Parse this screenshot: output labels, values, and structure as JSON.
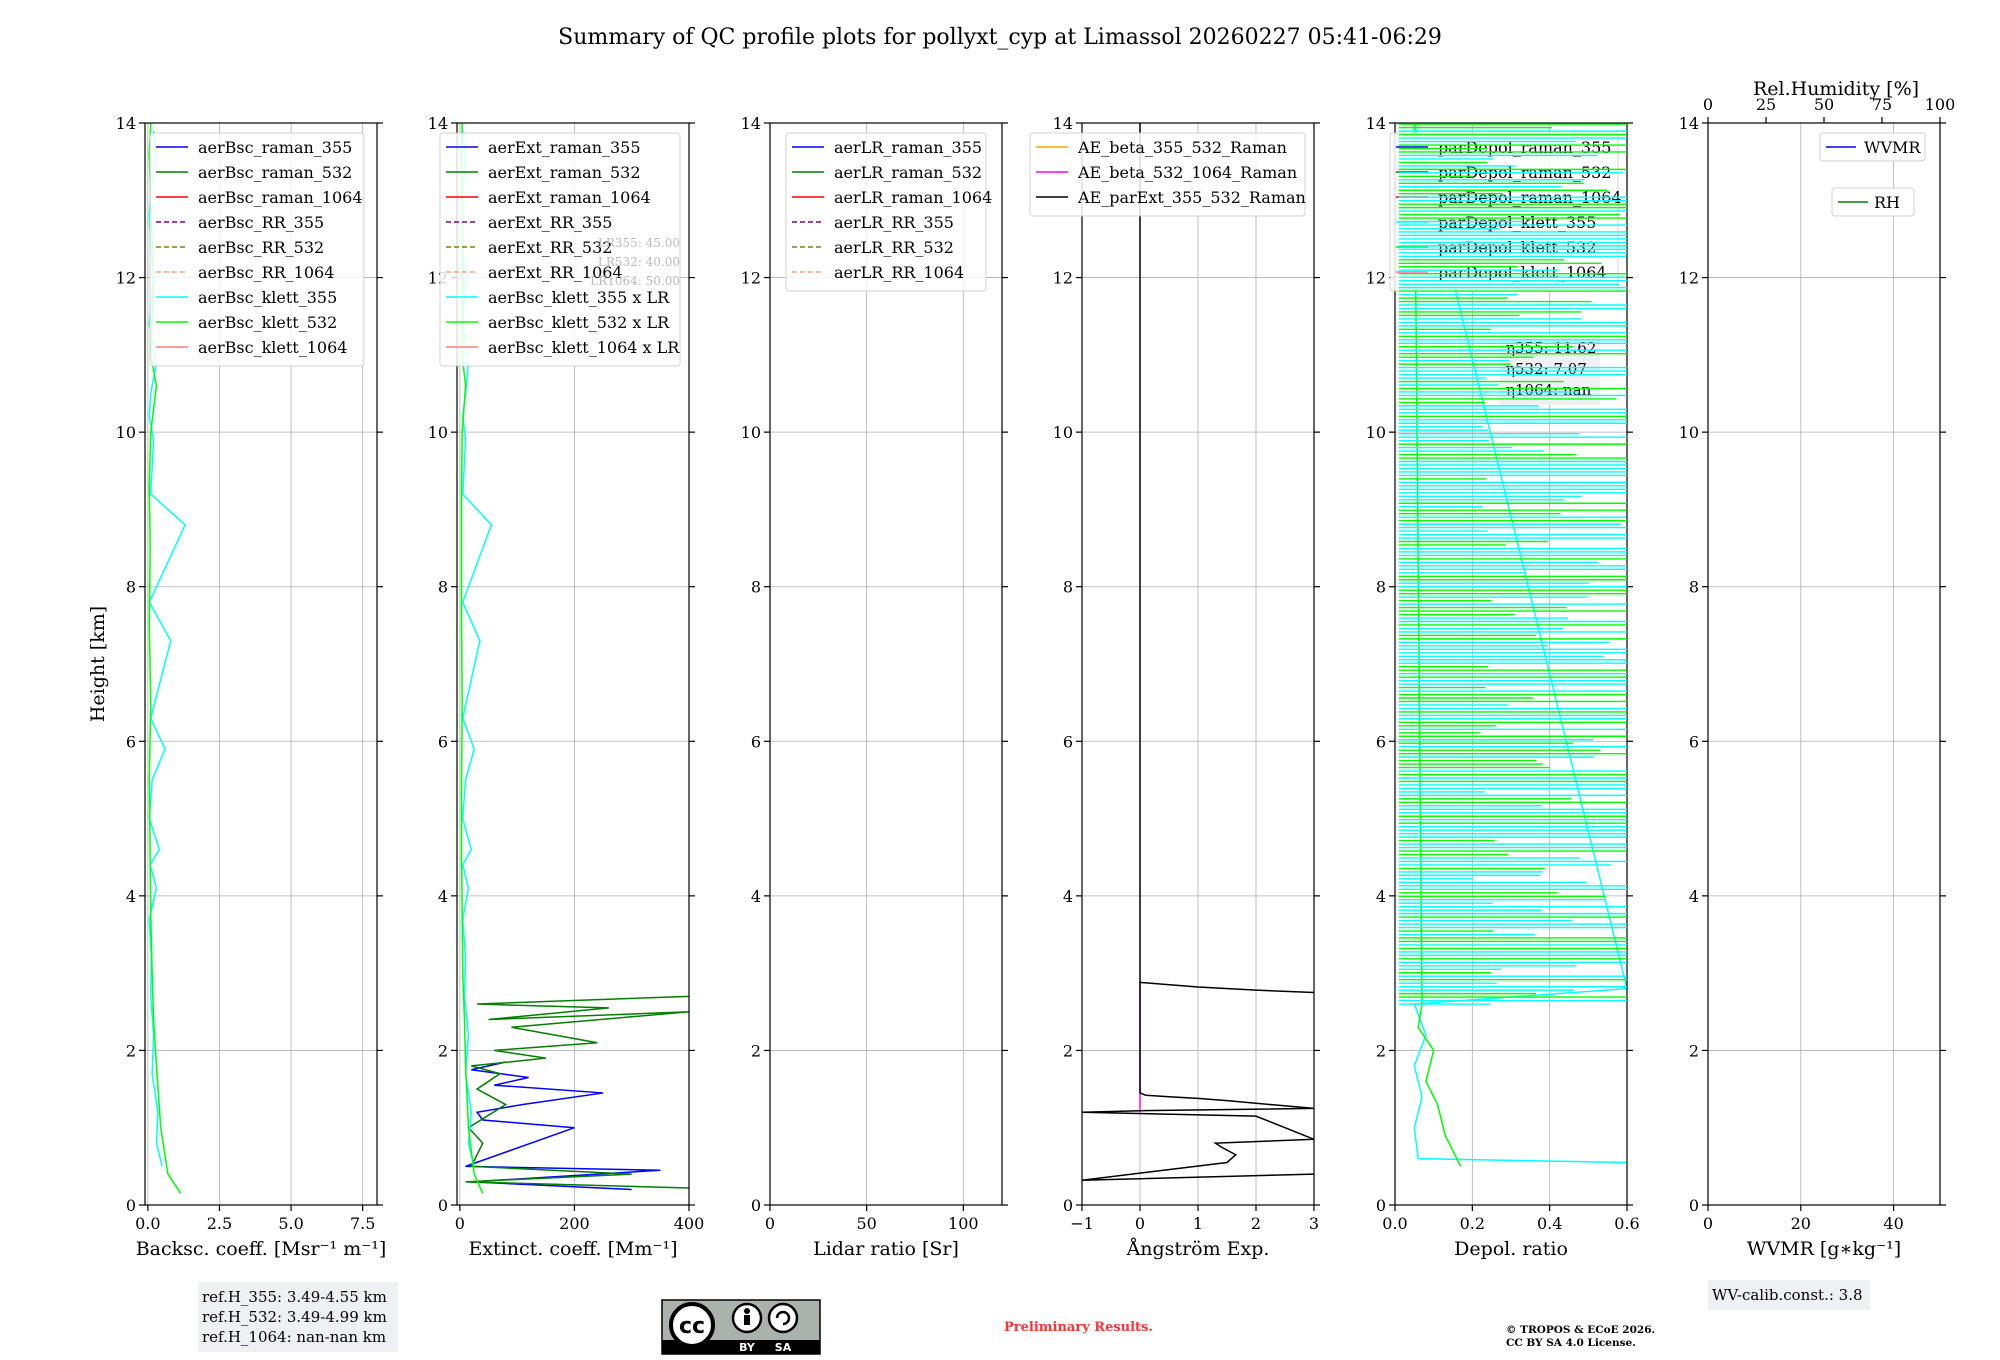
{
  "title": "Summary of QC profile plots for pollyxt_cyp at Limassol 20260227 05:41-06:29",
  "chart_data": [
    {
      "type": "line",
      "name": "backscatter",
      "xlabel": "Backsc. coeff. [Msr⁻¹ m⁻¹]",
      "ylabel": "Height [km]",
      "xlim": [
        -0.1,
        8.0
      ],
      "ylim": [
        0,
        14
      ],
      "xticks": [
        0,
        2.5,
        5.0,
        7.5
      ],
      "xticklabels": [
        "0.0",
        "2.5",
        "5.0",
        "7.5"
      ],
      "yticks": [
        0,
        2,
        4,
        6,
        8,
        10,
        12,
        14
      ],
      "legend": [
        "aerBsc_raman_355",
        "aerBsc_raman_532",
        "aerBsc_raman_1064",
        "aerBsc_RR_355",
        "aerBsc_RR_532",
        "aerBsc_RR_1064",
        "aerBsc_klett_355",
        "aerBsc_klett_532",
        "aerBsc_klett_1064"
      ],
      "legend_colors": [
        "#0000ff",
        "#008000",
        "#ff0000",
        "#800080",
        "#808000",
        "#ffa07a",
        "#00ffff",
        "#00ff00",
        "#fa8072"
      ],
      "legend_dashed": [
        false,
        false,
        false,
        true,
        true,
        true,
        false,
        false,
        false
      ],
      "series": [
        {
          "name": "aerBsc_klett_355",
          "color": "#00ffff",
          "x": [
            0.5,
            0.3,
            0.35,
            0.15,
            0.2,
            0.1,
            0.12,
            0.05,
            0.3,
            0.08,
            0.4,
            0.05,
            0.15,
            0.6,
            0.1,
            0.8,
            0.05,
            1.3,
            0.1,
            0.2,
            0.05,
            0.1,
            0.3,
            0.05,
            0.2,
            0.1,
            0.05,
            0.1,
            0.3,
            0.2
          ],
          "y": [
            0.5,
            0.8,
            1.2,
            1.7,
            2.2,
            2.7,
            3.2,
            3.7,
            4.1,
            4.4,
            4.6,
            5.0,
            5.5,
            5.9,
            6.3,
            7.3,
            7.8,
            8.8,
            9.2,
            9.9,
            10.2,
            10.5,
            10.9,
            11.4,
            12.0,
            12.4,
            12.8,
            13.1,
            13.5,
            13.9
          ]
        },
        {
          "name": "aerBsc_klett_532",
          "color": "#00ff00",
          "x": [
            1.15,
            0.7,
            0.45,
            0.3,
            0.2,
            0.15,
            0.1,
            0.08,
            0.05,
            0.1,
            0.05,
            0.08,
            0.05,
            0.1,
            0.3,
            0.1,
            0.2,
            0.1,
            0.05,
            0.1
          ],
          "y": [
            0.15,
            0.4,
            1.0,
            1.8,
            2.4,
            3.0,
            3.8,
            4.5,
            5.5,
            6.5,
            7.5,
            8.5,
            9.3,
            10.0,
            10.6,
            11.0,
            12.0,
            13.0,
            13.6,
            14.0
          ]
        }
      ],
      "annotation": [
        "ref.H_355: 3.49-4.55 km",
        "ref.H_532: 3.49-4.99 km",
        "ref.H_1064: nan-nan km"
      ]
    },
    {
      "type": "line",
      "name": "extinction",
      "xlabel": "Extinct. coeff. [Mm⁻¹]",
      "xlim": [
        -5,
        400
      ],
      "ylim": [
        0,
        14
      ],
      "xticks": [
        0,
        200,
        400
      ],
      "xticklabels": [
        "0",
        "200",
        "400"
      ],
      "yticks": [
        0,
        2,
        4,
        6,
        8,
        10,
        12,
        14
      ],
      "legend": [
        "aerExt_raman_355",
        "aerExt_raman_532",
        "aerExt_raman_1064",
        "aerExt_RR_355",
        "aerExt_RR_532",
        "aerExt_RR_1064",
        "aerBsc_klett_355 x LR",
        "aerBsc_klett_532 x LR",
        "aerBsc_klett_1064 x LR"
      ],
      "legend_colors": [
        "#0000ff",
        "#008000",
        "#ff0000",
        "#800080",
        "#808000",
        "#ffa07a",
        "#00ffff",
        "#00ff00",
        "#fa8072"
      ],
      "legend_dashed": [
        false,
        false,
        false,
        true,
        true,
        true,
        false,
        false,
        false
      ],
      "lr_labels": [
        "LR355: 45.00",
        "LR532: 40.00",
        "LR1064: 50.00"
      ],
      "series": [
        {
          "name": "aerExt_raman_355",
          "color": "#0000ff",
          "x": [
            300,
            20,
            350,
            10,
            200,
            40,
            30,
            110,
            250,
            60,
            120,
            20,
            80
          ],
          "y": [
            0.2,
            0.3,
            0.45,
            0.5,
            1.0,
            1.1,
            1.2,
            1.3,
            1.45,
            1.55,
            1.65,
            1.75,
            1.85
          ]
        },
        {
          "name": "aerExt_raman_532",
          "color": "#008000",
          "x": [
            400,
            10,
            300,
            20,
            40,
            15,
            80,
            30,
            70,
            20,
            150,
            60,
            240,
            90,
            400,
            50,
            260,
            30,
            400
          ],
          "y": [
            0.22,
            0.3,
            0.4,
            0.5,
            0.8,
            1.0,
            1.3,
            1.5,
            1.7,
            1.8,
            1.9,
            2.0,
            2.1,
            2.3,
            2.5,
            2.4,
            2.55,
            2.6,
            2.7
          ]
        },
        {
          "name": "aerBsc_klett_355 x LR",
          "color": "#00ffff",
          "x": [
            25,
            15,
            20,
            10,
            15,
            8,
            10,
            5,
            15,
            5,
            20,
            5,
            10,
            25,
            5,
            35,
            5,
            55,
            5,
            10,
            5,
            10,
            15,
            5,
            10,
            5,
            5,
            5,
            10,
            5
          ],
          "y": [
            0.5,
            0.8,
            1.2,
            1.7,
            2.2,
            2.7,
            3.2,
            3.7,
            4.1,
            4.4,
            4.6,
            5.0,
            5.5,
            5.9,
            6.3,
            7.3,
            7.8,
            8.8,
            9.2,
            9.9,
            10.2,
            10.5,
            10.9,
            11.4,
            12.0,
            12.4,
            12.8,
            13.1,
            13.5,
            13.9
          ]
        },
        {
          "name": "aerBsc_klett_532 x LR",
          "color": "#00ff00",
          "x": [
            40,
            25,
            15,
            10,
            8,
            5,
            4,
            3,
            3,
            4,
            3,
            3,
            3,
            4,
            10,
            4,
            5,
            4,
            3,
            4
          ],
          "y": [
            0.15,
            0.4,
            1.0,
            1.8,
            2.4,
            3.0,
            3.8,
            4.5,
            5.5,
            6.5,
            7.5,
            8.5,
            9.3,
            10.0,
            10.6,
            11.0,
            12.0,
            13.0,
            13.6,
            14.0
          ]
        }
      ]
    },
    {
      "type": "line",
      "name": "lidar_ratio",
      "xlabel": "Lidar ratio [Sr]",
      "xlim": [
        0,
        120
      ],
      "ylim": [
        0,
        14
      ],
      "xticks": [
        0,
        50,
        100
      ],
      "xticklabels": [
        "0",
        "50",
        "100"
      ],
      "yticks": [
        0,
        2,
        4,
        6,
        8,
        10,
        12,
        14
      ],
      "legend": [
        "aerLR_raman_355",
        "aerLR_raman_532",
        "aerLR_raman_1064",
        "aerLR_RR_355",
        "aerLR_RR_532",
        "aerLR_RR_1064"
      ],
      "legend_colors": [
        "#0000ff",
        "#008000",
        "#ff0000",
        "#800080",
        "#808000",
        "#ffa07a"
      ],
      "legend_dashed": [
        false,
        false,
        false,
        true,
        true,
        true
      ],
      "series": []
    },
    {
      "type": "line",
      "name": "angstrom",
      "xlabel": "Ångström Exp.",
      "xlim": [
        -1,
        3
      ],
      "ylim": [
        0,
        14
      ],
      "xticks": [
        -1,
        0,
        1,
        2,
        3
      ],
      "xticklabels": [
        "−1",
        "0",
        "1",
        "2",
        "3"
      ],
      "yticks": [
        0,
        2,
        4,
        6,
        8,
        10,
        12,
        14
      ],
      "legend": [
        "AE_beta_355_532_Raman",
        "AE_beta_532_1064_Raman",
        "AE_parExt_355_532_Raman"
      ],
      "legend_colors": [
        "#ffa500",
        "#ff00ff",
        "#000000"
      ],
      "legend_dashed": [
        false,
        false,
        false
      ],
      "series": [
        {
          "name": "AE_beta_532_1064_Raman",
          "color": "#ff00ff",
          "x": [
            0,
            0
          ],
          "y": [
            1.2,
            2.9
          ]
        },
        {
          "name": "AE_parExt_355_532_Raman",
          "color": "#000000",
          "x": [
            3.0,
            -1.0,
            1.5,
            1.65,
            1.4,
            1.3,
            3.0,
            2.0,
            -1.0,
            0.0,
            3.0,
            1.5,
            1.0,
            0.5,
            0.1,
            0.0,
            0.0,
            0.0
          ],
          "y": [
            0.4,
            0.32,
            0.55,
            0.65,
            0.75,
            0.8,
            0.85,
            1.15,
            1.2,
            1.22,
            1.25,
            1.35,
            1.38,
            1.4,
            1.42,
            1.45,
            2.9,
            14.0
          ]
        },
        {
          "name": "AE_parExt_355_532_Raman_upper",
          "color": "#000000",
          "x": [
            0.0,
            1.0,
            2.0,
            3.0
          ],
          "y": [
            2.88,
            2.82,
            2.78,
            2.75
          ]
        }
      ]
    },
    {
      "type": "line",
      "name": "depolarization",
      "xlabel": "Depol. ratio",
      "xlim": [
        0,
        0.6
      ],
      "ylim": [
        0,
        14
      ],
      "xticks": [
        0,
        0.2,
        0.4,
        0.6
      ],
      "xticklabels": [
        "0.0",
        "0.2",
        "0.4",
        "0.6"
      ],
      "yticks": [
        0,
        2,
        4,
        6,
        8,
        10,
        12,
        14
      ],
      "legend": [
        "parDepol_raman_355",
        "parDepol_raman_532",
        "parDepol_raman_1064",
        "parDepol_klett_355",
        "parDepol_klett_532",
        "parDepol_klett_1064"
      ],
      "legend_colors": [
        "#0000ff",
        "#008000",
        "#ff0000",
        "#00ffff",
        "#00ff00",
        "#ff69b4"
      ],
      "legend_dashed": [
        false,
        false,
        false,
        false,
        false,
        false
      ],
      "eta_labels": [
        "η355: 11.62",
        "η532: 7.07",
        "η1064: nan"
      ],
      "series": [
        {
          "name": "parDepol_klett_355",
          "color": "#00ffff",
          "x": [
            0.6,
            0.06,
            0.05,
            0.07,
            0.05,
            0.08,
            0.05,
            0.6,
            0.05
          ],
          "y": [
            0.55,
            0.6,
            1.0,
            1.4,
            1.8,
            2.2,
            2.6,
            2.8,
            14
          ]
        },
        {
          "name": "parDepol_klett_532",
          "color": "#00ff00",
          "x": [
            0.17,
            0.13,
            0.11,
            0.08,
            0.1,
            0.06,
            0.07,
            0.05
          ],
          "y": [
            0.5,
            0.9,
            1.3,
            1.6,
            2.0,
            2.3,
            2.6,
            14
          ]
        }
      ]
    },
    {
      "type": "line",
      "name": "water_vapor",
      "xlabel": "WVMR [g∗kg⁻¹]",
      "top_xlabel": "Rel.Humidity [%]",
      "xlim": [
        0,
        50
      ],
      "ylim": [
        0,
        14
      ],
      "xticks": [
        0,
        20,
        40
      ],
      "xticklabels": [
        "0",
        "20",
        "40"
      ],
      "top_xticks": [
        0,
        25,
        50,
        75,
        100
      ],
      "top_xticklabels": [
        "0",
        "25",
        "50",
        "75",
        "100"
      ],
      "yticks": [
        0,
        2,
        4,
        6,
        8,
        10,
        12,
        14
      ],
      "legend": [
        "WVMR",
        "RH"
      ],
      "legend_colors": [
        "#0000ff",
        "#008000"
      ],
      "legend_dashed": [
        false,
        false
      ],
      "annotation": [
        "WV-calib.const.: 3.8"
      ],
      "series": []
    }
  ],
  "footer": {
    "preliminary": "Preliminary Results.",
    "copyright_line1": "© TROPOS & ECoE 2026.",
    "copyright_line2": "CC BY SA 4.0 License.",
    "cc_by": "BY",
    "cc_sa": "SA"
  }
}
